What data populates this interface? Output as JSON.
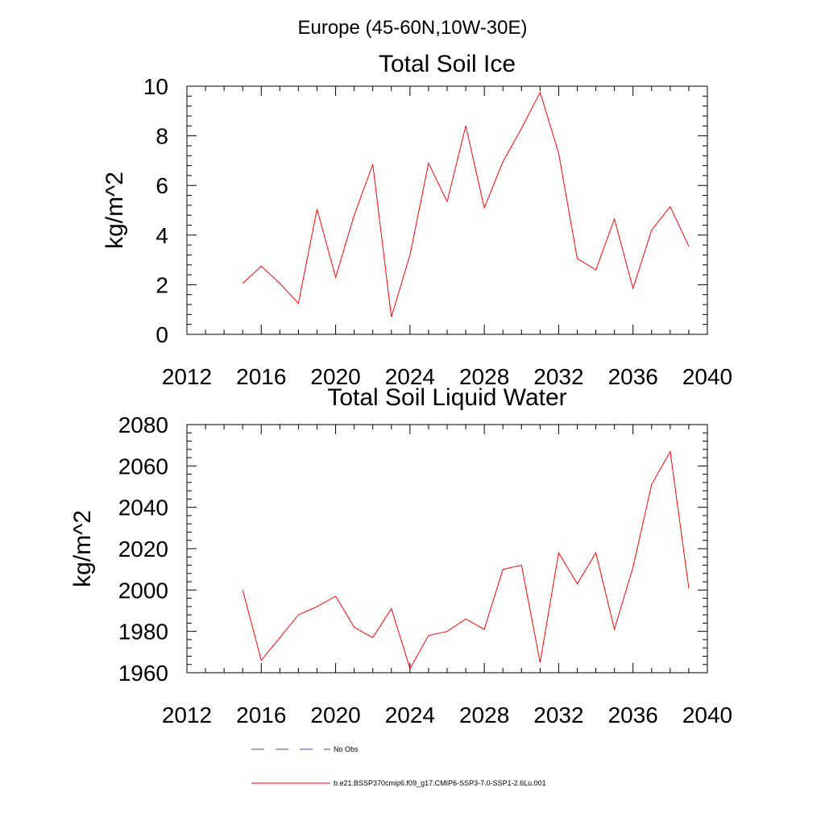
{
  "suptitle": "Europe (45-60N,10W-30E)",
  "colors": {
    "model": "#ff0000",
    "obs": "#4a4ab0"
  },
  "legend": {
    "obs_label": "No Obs",
    "model_label": "b.e21.BSSP370cmip6.f09_g17.CMIP6-SSP3-7.0-SSP1-2.6Lu.001"
  },
  "chart_data": [
    {
      "type": "line",
      "title": "Total Soil Ice",
      "xlabel": "",
      "ylabel": "kg/m^2",
      "xlim": [
        2012,
        2040
      ],
      "ylim": [
        0,
        10
      ],
      "xticks": [
        2012,
        2016,
        2020,
        2024,
        2028,
        2032,
        2036,
        2040
      ],
      "yticks": [
        0,
        2,
        4,
        6,
        8,
        10
      ],
      "x": [
        2015,
        2016,
        2017,
        2018,
        2019,
        2020,
        2021,
        2022,
        2023,
        2024,
        2025,
        2026,
        2027,
        2028,
        2029,
        2030,
        2031,
        2032,
        2033,
        2034,
        2035,
        2036,
        2037,
        2038,
        2039
      ],
      "series": [
        {
          "name": "b.e21.BSSP370cmip6.f09_g17.CMIP6-SSP3-7.0-SSP1-2.6Lu.001",
          "values": [
            2.05,
            2.75,
            2.05,
            1.25,
            5.05,
            2.3,
            4.8,
            6.85,
            0.7,
            3.2,
            6.9,
            5.35,
            8.4,
            5.1,
            6.95,
            8.3,
            9.75,
            7.3,
            3.05,
            2.6,
            4.65,
            1.85,
            4.2,
            5.15,
            3.55
          ]
        }
      ],
      "grid": false
    },
    {
      "type": "line",
      "title": "Total Soil Liquid Water",
      "xlabel": "",
      "ylabel": "kg/m^2",
      "xlim": [
        2012,
        2040
      ],
      "ylim": [
        1960,
        2080
      ],
      "xticks": [
        2012,
        2016,
        2020,
        2024,
        2028,
        2032,
        2036,
        2040
      ],
      "yticks": [
        1960,
        1980,
        2000,
        2020,
        2040,
        2060,
        2080
      ],
      "x": [
        2015,
        2016,
        2017,
        2018,
        2019,
        2020,
        2021,
        2022,
        2023,
        2024,
        2025,
        2026,
        2027,
        2028,
        2029,
        2030,
        2031,
        2032,
        2033,
        2034,
        2035,
        2036,
        2037,
        2038,
        2039
      ],
      "series": [
        {
          "name": "b.e21.BSSP370cmip6.f09_g17.CMIP6-SSP3-7.0-SSP1-2.6Lu.001",
          "values": [
            2000,
            1966,
            1977,
            1988,
            1992,
            1997,
            1982,
            1977,
            1991,
            1962,
            1978,
            1980,
            1986,
            1981,
            2010,
            2012,
            1965,
            2018,
            2003,
            2018,
            1981,
            2011,
            2051,
            2067,
            2001
          ]
        }
      ],
      "grid": false
    }
  ]
}
